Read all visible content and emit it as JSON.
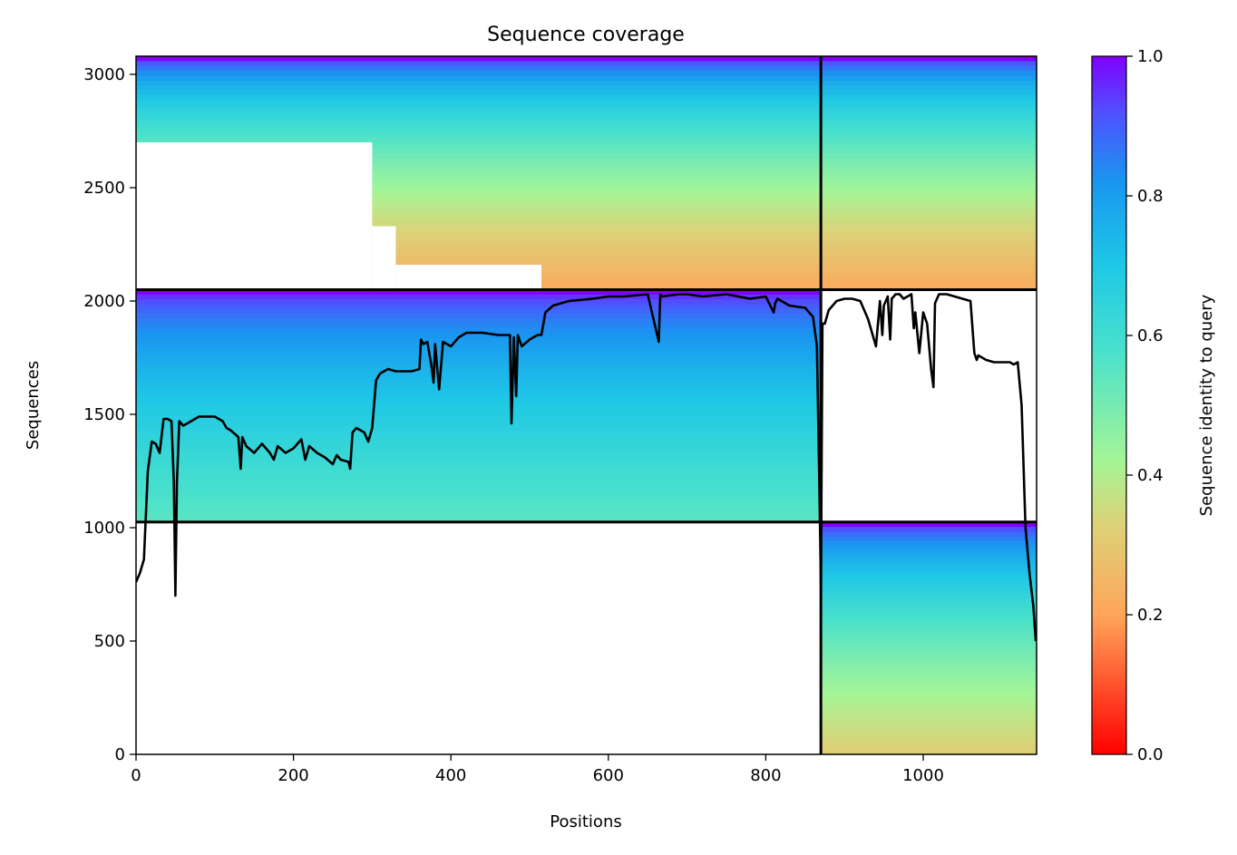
{
  "chart_data": {
    "type": "heatmap",
    "title": "Sequence coverage",
    "xlabel": "Positions",
    "ylabel": "Sequences",
    "xlim": [
      0,
      1144
    ],
    "ylim": [
      0,
      3080
    ],
    "xticks": [
      0,
      200,
      400,
      600,
      800,
      1000
    ],
    "yticks": [
      0,
      500,
      1000,
      1500,
      2000,
      2500,
      3000
    ],
    "colorbar": {
      "label": "Sequence identity to query",
      "range": [
        0.0,
        1.0
      ],
      "ticks": [
        "0.0",
        "0.2",
        "0.4",
        "0.6",
        "0.8",
        "1.0"
      ],
      "colormap": "rainbow_r"
    },
    "grid": false,
    "boundaries": {
      "chain_break_x": 870,
      "row_breaks_y": [
        1025,
        2050
      ],
      "x_max": 1144,
      "y_max": 3080
    },
    "blocks": [
      {
        "x": [
          0,
          870
        ],
        "y": [
          2050,
          3080
        ],
        "identity_top": 1.0,
        "identity_bottom": 0.22
      },
      {
        "x": [
          870,
          1144
        ],
        "y": [
          2050,
          3080
        ],
        "identity_top": 1.0,
        "identity_bottom": 0.22
      },
      {
        "x": [
          0,
          870
        ],
        "y": [
          1025,
          2050
        ],
        "identity_top": 1.0,
        "identity_bottom": 0.55
      },
      {
        "x": [
          870,
          1144
        ],
        "y": [
          0,
          1025
        ],
        "identity_top": 1.0,
        "identity_bottom": 0.32
      }
    ],
    "coverage_line": {
      "x": [
        0,
        5,
        10,
        15,
        20,
        25,
        30,
        35,
        40,
        45,
        48,
        50,
        52,
        55,
        60,
        70,
        80,
        90,
        100,
        110,
        115,
        120,
        130,
        133,
        135,
        140,
        150,
        160,
        170,
        175,
        180,
        190,
        200,
        210,
        215,
        220,
        230,
        240,
        250,
        255,
        260,
        270,
        272,
        275,
        280,
        290,
        295,
        300,
        305,
        310,
        320,
        330,
        340,
        350,
        360,
        362,
        365,
        370,
        375,
        378,
        380,
        385,
        390,
        400,
        410,
        420,
        440,
        460,
        470,
        475,
        477,
        480,
        483,
        485,
        490,
        500,
        510,
        515,
        520,
        530,
        550,
        580,
        600,
        620,
        650,
        664,
        666,
        668,
        690,
        700,
        720,
        750,
        780,
        800,
        810,
        812,
        815,
        830,
        850,
        860,
        865,
        868,
        870,
        872,
        875,
        880,
        890,
        900,
        910,
        920,
        930,
        940,
        945,
        948,
        950,
        955,
        958,
        960,
        965,
        970,
        975,
        980,
        985,
        988,
        990,
        995,
        1000,
        1005,
        1010,
        1013,
        1015,
        1020,
        1030,
        1040,
        1050,
        1060,
        1065,
        1068,
        1070,
        1080,
        1090,
        1100,
        1110,
        1115,
        1120,
        1125,
        1130,
        1135,
        1140,
        1143
      ],
      "y": [
        760,
        800,
        860,
        1250,
        1380,
        1370,
        1330,
        1480,
        1480,
        1470,
        1200,
        700,
        1200,
        1470,
        1450,
        1470,
        1490,
        1490,
        1490,
        1470,
        1440,
        1430,
        1400,
        1260,
        1400,
        1360,
        1330,
        1370,
        1330,
        1300,
        1360,
        1330,
        1350,
        1390,
        1300,
        1360,
        1330,
        1310,
        1280,
        1320,
        1300,
        1290,
        1260,
        1420,
        1440,
        1420,
        1380,
        1440,
        1650,
        1680,
        1700,
        1690,
        1690,
        1690,
        1700,
        1830,
        1810,
        1820,
        1720,
        1640,
        1810,
        1610,
        1820,
        1800,
        1840,
        1860,
        1860,
        1850,
        1850,
        1850,
        1460,
        1840,
        1580,
        1850,
        1800,
        1830,
        1850,
        1850,
        1950,
        1980,
        2000,
        2010,
        2020,
        2020,
        2030,
        1820,
        2030,
        2020,
        2030,
        2030,
        2020,
        2030,
        2010,
        2020,
        1950,
        1990,
        2010,
        1980,
        1970,
        1930,
        1800,
        1200,
        750,
        1900,
        1900,
        1960,
        2000,
        2010,
        2010,
        2000,
        1920,
        1800,
        2000,
        1850,
        1980,
        2020,
        1830,
        2010,
        2030,
        2030,
        2010,
        2020,
        2030,
        1880,
        1950,
        1770,
        1950,
        1900,
        1700,
        1620,
        1990,
        2030,
        2030,
        2020,
        2010,
        2000,
        1770,
        1740,
        1760,
        1740,
        1730,
        1730,
        1730,
        1720,
        1730,
        1540,
        1000,
        800,
        650,
        500
      ]
    }
  }
}
